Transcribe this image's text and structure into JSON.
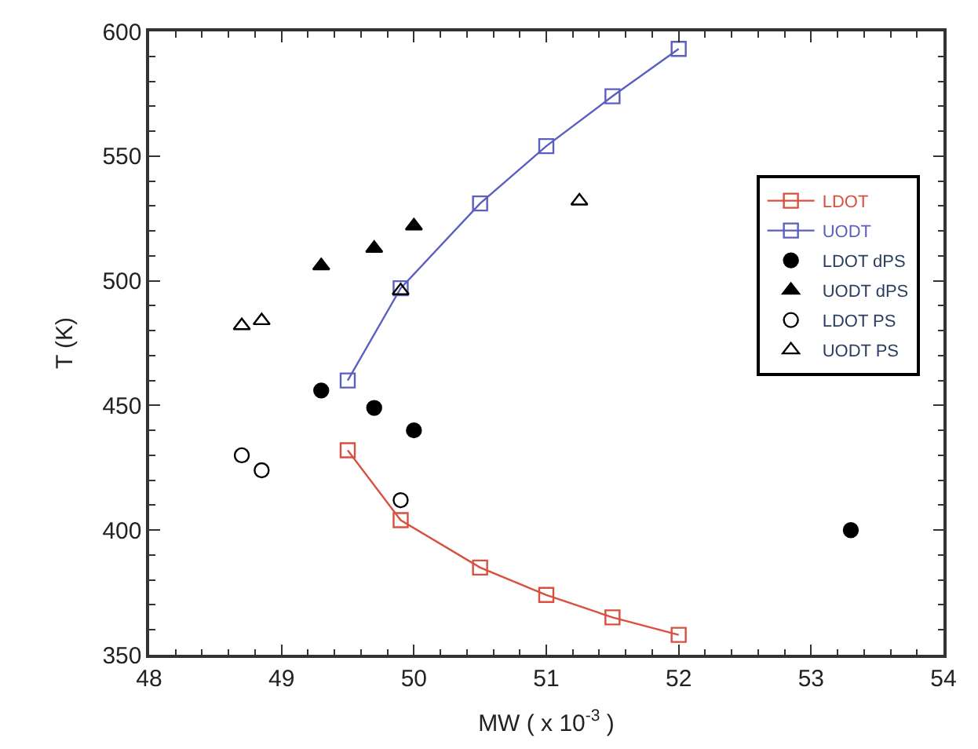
{
  "chart_data": {
    "type": "scatter",
    "xlabel": "MW ( x 10$^{-3}$ )",
    "ylabel": "T (K)",
    "xlim": [
      48,
      54
    ],
    "xticks": [
      48,
      49,
      50,
      51,
      52,
      53,
      54
    ],
    "ylim": [
      350,
      600
    ],
    "yticks": [
      350,
      400,
      450,
      500,
      550,
      600
    ],
    "legend": "top right",
    "line_style": "solid",
    "series": [
      {
        "name": "LDOT",
        "type": "line",
        "marker": "square-open",
        "color": "#d9503f",
        "x": [
          49.5,
          49.9,
          50.5,
          51,
          51.5,
          52
        ],
        "values": [
          432,
          404,
          385,
          374,
          365,
          358
        ]
      },
      {
        "name": "UODT",
        "type": "line",
        "marker": "square-open",
        "color": "#5b5fbf",
        "x": [
          49.5,
          49.9,
          50.5,
          51,
          51.5,
          52
        ],
        "values": [
          460,
          497,
          531,
          554,
          574,
          593
        ]
      },
      {
        "name": "LDOT dPS",
        "marker": "circle",
        "color": "#000000",
        "x": [
          49.3,
          49.7,
          50.0,
          53.3
        ],
        "values": [
          456,
          449,
          440,
          400
        ]
      },
      {
        "name": "UODT dPS",
        "marker": "triangle",
        "color": "#000000",
        "x": [
          49.3,
          49.7,
          50.0
        ],
        "values": [
          506,
          513,
          522
        ]
      },
      {
        "name": "LDOT PS",
        "marker": "circle-open",
        "color": "#000000",
        "x": [
          48.7,
          48.85,
          49.9
        ],
        "values": [
          430,
          424,
          412
        ]
      },
      {
        "name": "UODT PS",
        "marker": "triangle-open",
        "color": "#000000",
        "x": [
          48.7,
          48.85,
          49.9,
          51.25
        ],
        "values": [
          482,
          484,
          496,
          532
        ]
      }
    ]
  }
}
